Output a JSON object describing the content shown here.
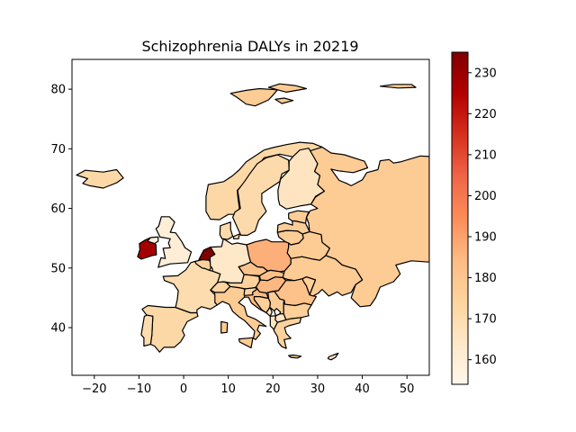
{
  "chart_data": {
    "type": "choropleth",
    "title": "Schizophrenia DALYs in 20219",
    "xlim": [
      -25,
      55
    ],
    "ylim": [
      32,
      85
    ],
    "x_ticks": [
      -20,
      -10,
      0,
      10,
      20,
      30,
      40,
      50
    ],
    "y_ticks": [
      40,
      50,
      60,
      70,
      80
    ],
    "colorbar": {
      "colormap": "OrRd",
      "min": 154,
      "max": 235,
      "ticks": [
        160,
        170,
        180,
        190,
        200,
        210,
        220,
        230
      ]
    },
    "regions": [
      {
        "name": "Netherlands",
        "value": 235
      },
      {
        "name": "Ireland",
        "value": 228
      },
      {
        "name": "Poland",
        "value": 187
      },
      {
        "name": "Hungary",
        "value": 185
      },
      {
        "name": "Croatia",
        "value": 184
      },
      {
        "name": "Romania",
        "value": 182
      },
      {
        "name": "Slovakia",
        "value": 182
      },
      {
        "name": "Czechia",
        "value": 181
      },
      {
        "name": "Russia",
        "value": 178
      },
      {
        "name": "Ukraine",
        "value": 178
      },
      {
        "name": "Belarus",
        "value": 178
      },
      {
        "name": "Svalbard",
        "value": 178
      },
      {
        "name": "Italy",
        "value": 178
      },
      {
        "name": "Lithuania",
        "value": 177
      },
      {
        "name": "Latvia",
        "value": 177
      },
      {
        "name": "Estonia",
        "value": 177
      },
      {
        "name": "Serbia",
        "value": 177
      },
      {
        "name": "Bulgaria",
        "value": 176
      },
      {
        "name": "Greece",
        "value": 175
      },
      {
        "name": "Austria",
        "value": 175
      },
      {
        "name": "Belgium",
        "value": 175
      },
      {
        "name": "Moldova",
        "value": 176
      },
      {
        "name": "Bosnia",
        "value": 176
      },
      {
        "name": "Slovenia",
        "value": 174
      },
      {
        "name": "Switzerland",
        "value": 174
      },
      {
        "name": "Norway",
        "value": 172
      },
      {
        "name": "Spain",
        "value": 172
      },
      {
        "name": "Iceland",
        "value": 172
      },
      {
        "name": "Sweden",
        "value": 171
      },
      {
        "name": "Denmark",
        "value": 171
      },
      {
        "name": "France",
        "value": 170
      },
      {
        "name": "Portugal",
        "value": 170
      },
      {
        "name": "Finland",
        "value": 166
      },
      {
        "name": "Germany",
        "value": 164
      },
      {
        "name": "Macedonia",
        "value": 165
      },
      {
        "name": "Albania",
        "value": 165
      },
      {
        "name": "Montenegro",
        "value": 164
      },
      {
        "name": "United Kingdom",
        "value": 160
      },
      {
        "name": "Luxembourg",
        "value": 163
      },
      {
        "name": "Cyprus",
        "value": 168
      },
      {
        "name": "Kosovo",
        "value": 156
      }
    ]
  }
}
